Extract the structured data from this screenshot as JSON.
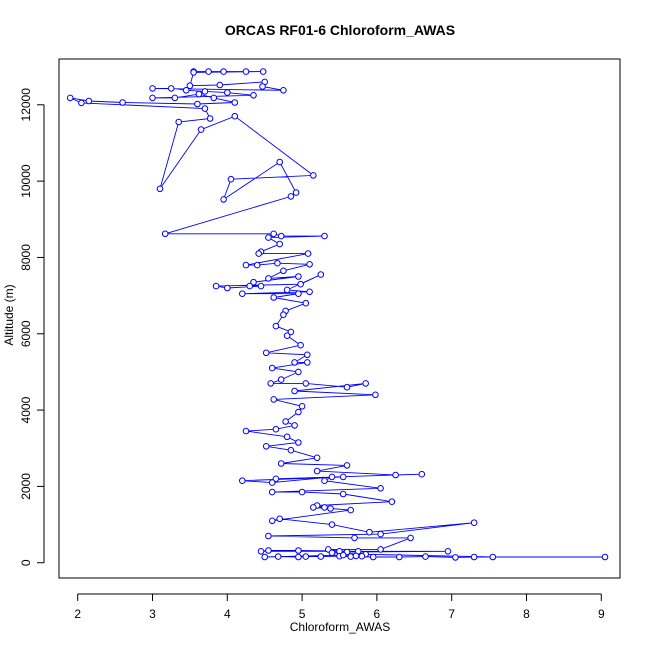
{
  "chart_data": {
    "type": "line",
    "title": "ORCAS RF01-6 Chloroform_AWAS",
    "xlabel": "Chloroform_AWAS",
    "ylabel": "Altitude (m)",
    "xlim": [
      1.75,
      9.25
    ],
    "ylim": [
      -400,
      13200
    ],
    "xticks": [
      2,
      3,
      4,
      5,
      6,
      7,
      8,
      9
    ],
    "yticks": [
      0,
      2000,
      4000,
      6000,
      8000,
      10000,
      12000
    ],
    "grid": false,
    "line_color": "#0000ff",
    "marker": "open-circle",
    "series": [
      {
        "points": [
          [
            3.55,
            12870
          ],
          [
            3.75,
            12870
          ],
          [
            3.95,
            12870
          ],
          [
            4.25,
            12870
          ],
          [
            4.48,
            12870
          ],
          [
            3.55,
            12850
          ],
          [
            3.5,
            12500
          ],
          [
            3.9,
            12520
          ],
          [
            4.5,
            12600
          ],
          [
            4.47,
            12480
          ],
          [
            4.75,
            12380
          ],
          [
            3.0,
            12430
          ],
          [
            3.25,
            12430
          ],
          [
            3.45,
            12380
          ],
          [
            3.7,
            12350
          ],
          [
            4.0,
            12320
          ],
          [
            4.35,
            12250
          ],
          [
            3.0,
            12180
          ],
          [
            3.3,
            12180
          ],
          [
            3.62,
            12280
          ],
          [
            3.82,
            12180
          ],
          [
            4.1,
            12060
          ],
          [
            3.6,
            12020
          ],
          [
            2.6,
            12060
          ],
          [
            2.15,
            12100
          ],
          [
            1.9,
            12180
          ],
          [
            2.05,
            12050
          ],
          [
            3.7,
            11900
          ],
          [
            3.77,
            11640
          ],
          [
            3.35,
            11550
          ],
          [
            3.1,
            9800
          ],
          [
            3.65,
            11350
          ],
          [
            4.1,
            11700
          ],
          [
            5.15,
            10150
          ],
          [
            4.05,
            10050
          ],
          [
            3.95,
            9520
          ],
          [
            4.7,
            10500
          ],
          [
            4.92,
            9700
          ],
          [
            4.85,
            9600
          ],
          [
            3.17,
            8620
          ],
          [
            4.62,
            8620
          ],
          [
            4.72,
            8560
          ],
          [
            5.3,
            8560
          ],
          [
            4.55,
            8520
          ],
          [
            4.7,
            8350
          ],
          [
            4.45,
            8150
          ],
          [
            4.42,
            8100
          ],
          [
            5.08,
            8100
          ],
          [
            4.25,
            7800
          ],
          [
            4.4,
            7800
          ],
          [
            4.67,
            7850
          ],
          [
            5.1,
            7820
          ],
          [
            4.75,
            7650
          ],
          [
            4.55,
            7450
          ],
          [
            4.95,
            7500
          ],
          [
            4.35,
            7350
          ],
          [
            4.3,
            7250
          ],
          [
            4.45,
            7250
          ],
          [
            4.0,
            7200
          ],
          [
            3.85,
            7250
          ],
          [
            4.98,
            7300
          ],
          [
            5.25,
            7550
          ],
          [
            4.8,
            7150
          ],
          [
            5.1,
            7100
          ],
          [
            4.2,
            7050
          ],
          [
            4.95,
            7050
          ],
          [
            4.62,
            6950
          ],
          [
            5.05,
            6800
          ],
          [
            4.78,
            6600
          ],
          [
            4.75,
            6500
          ],
          [
            4.65,
            6200
          ],
          [
            4.85,
            6050
          ],
          [
            4.8,
            5950
          ],
          [
            4.98,
            5700
          ],
          [
            4.52,
            5500
          ],
          [
            5.07,
            5450
          ],
          [
            4.9,
            5250
          ],
          [
            5.07,
            5250
          ],
          [
            4.6,
            5100
          ],
          [
            4.95,
            5000
          ],
          [
            4.72,
            4800
          ],
          [
            4.58,
            4700
          ],
          [
            5.05,
            4700
          ],
          [
            5.6,
            4600
          ],
          [
            5.85,
            4700
          ],
          [
            4.9,
            4500
          ],
          [
            5.98,
            4400
          ],
          [
            4.62,
            4280
          ],
          [
            5.0,
            4100
          ],
          [
            4.95,
            3950
          ],
          [
            4.78,
            3700
          ],
          [
            4.9,
            3600
          ],
          [
            4.65,
            3500
          ],
          [
            4.25,
            3450
          ],
          [
            4.8,
            3300
          ],
          [
            4.95,
            3150
          ],
          [
            4.52,
            3050
          ],
          [
            4.85,
            2950
          ],
          [
            5.2,
            2750
          ],
          [
            4.72,
            2600
          ],
          [
            5.6,
            2550
          ],
          [
            5.2,
            2400
          ],
          [
            6.25,
            2300
          ],
          [
            6.6,
            2320
          ],
          [
            4.65,
            2200
          ],
          [
            5.55,
            2250
          ],
          [
            4.2,
            2150
          ],
          [
            4.6,
            2100
          ],
          [
            5.4,
            2250
          ],
          [
            5.3,
            2150
          ],
          [
            6.05,
            1950
          ],
          [
            4.6,
            1850
          ],
          [
            5.0,
            1850
          ],
          [
            5.55,
            1800
          ],
          [
            6.2,
            1600
          ],
          [
            5.2,
            1500
          ],
          [
            5.3,
            1450
          ],
          [
            5.15,
            1450
          ],
          [
            5.38,
            1420
          ],
          [
            5.65,
            1380
          ],
          [
            4.6,
            1100
          ],
          [
            4.7,
            1150
          ],
          [
            5.4,
            1000
          ],
          [
            5.9,
            800
          ],
          [
            7.3,
            1050
          ],
          [
            6.05,
            750
          ],
          [
            4.55,
            700
          ],
          [
            5.7,
            650
          ],
          [
            6.45,
            650
          ],
          [
            6.05,
            350
          ],
          [
            5.35,
            350
          ],
          [
            5.5,
            300
          ],
          [
            4.45,
            300
          ],
          [
            4.55,
            320
          ],
          [
            4.95,
            320
          ],
          [
            5.75,
            300
          ],
          [
            6.95,
            300
          ],
          [
            5.6,
            280
          ],
          [
            5.4,
            260
          ],
          [
            5.85,
            220
          ],
          [
            7.55,
            150
          ],
          [
            9.05,
            150
          ],
          [
            7.3,
            150
          ],
          [
            7.05,
            140
          ],
          [
            6.65,
            160
          ],
          [
            6.3,
            150
          ],
          [
            5.95,
            150
          ],
          [
            5.65,
            160
          ],
          [
            5.5,
            170
          ],
          [
            5.25,
            160
          ],
          [
            5.05,
            160
          ],
          [
            4.95,
            150
          ],
          [
            4.68,
            160
          ],
          [
            4.5,
            150
          ],
          [
            5.55,
            200
          ],
          [
            5.72,
            180
          ],
          [
            5.8,
            170
          ]
        ]
      }
    ]
  }
}
